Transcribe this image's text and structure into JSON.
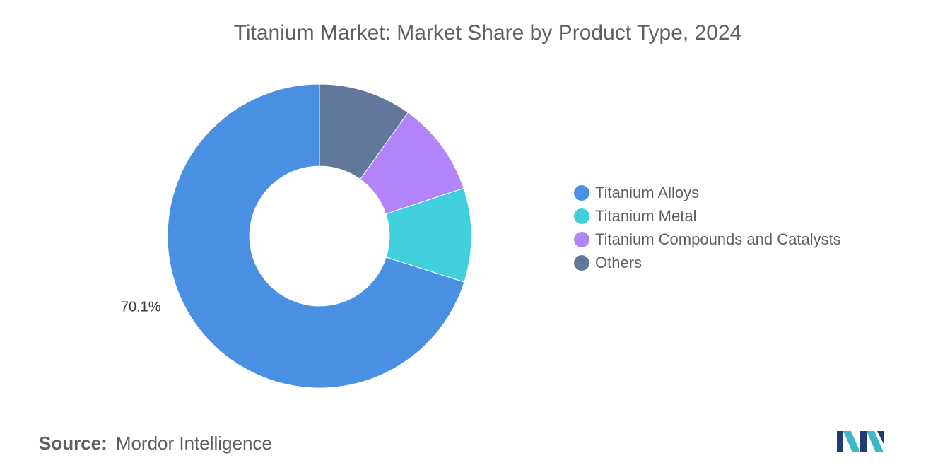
{
  "chart_data": {
    "type": "pie",
    "title": "Titanium Market: Market Share by Product Type, 2024",
    "categories": [
      "Titanium Alloys",
      "Titanium Metal",
      "Titanium Compounds and Catalysts",
      "Others"
    ],
    "values": [
      70.1,
      10.0,
      10.0,
      9.9
    ],
    "colors": [
      "#4A90E2",
      "#3FD0DC",
      "#B184F9",
      "#62789A"
    ],
    "data_labels": [
      "70.1%",
      "",
      "",
      ""
    ],
    "inner_radius_ratio": 0.46,
    "legend_position": "right"
  },
  "source": {
    "label": "Source:",
    "text": "Mordor Intelligence"
  },
  "logo": {
    "icon": "mordor-intelligence-logo-icon",
    "colors": [
      "#1F3B73",
      "#3FB6C8"
    ]
  }
}
